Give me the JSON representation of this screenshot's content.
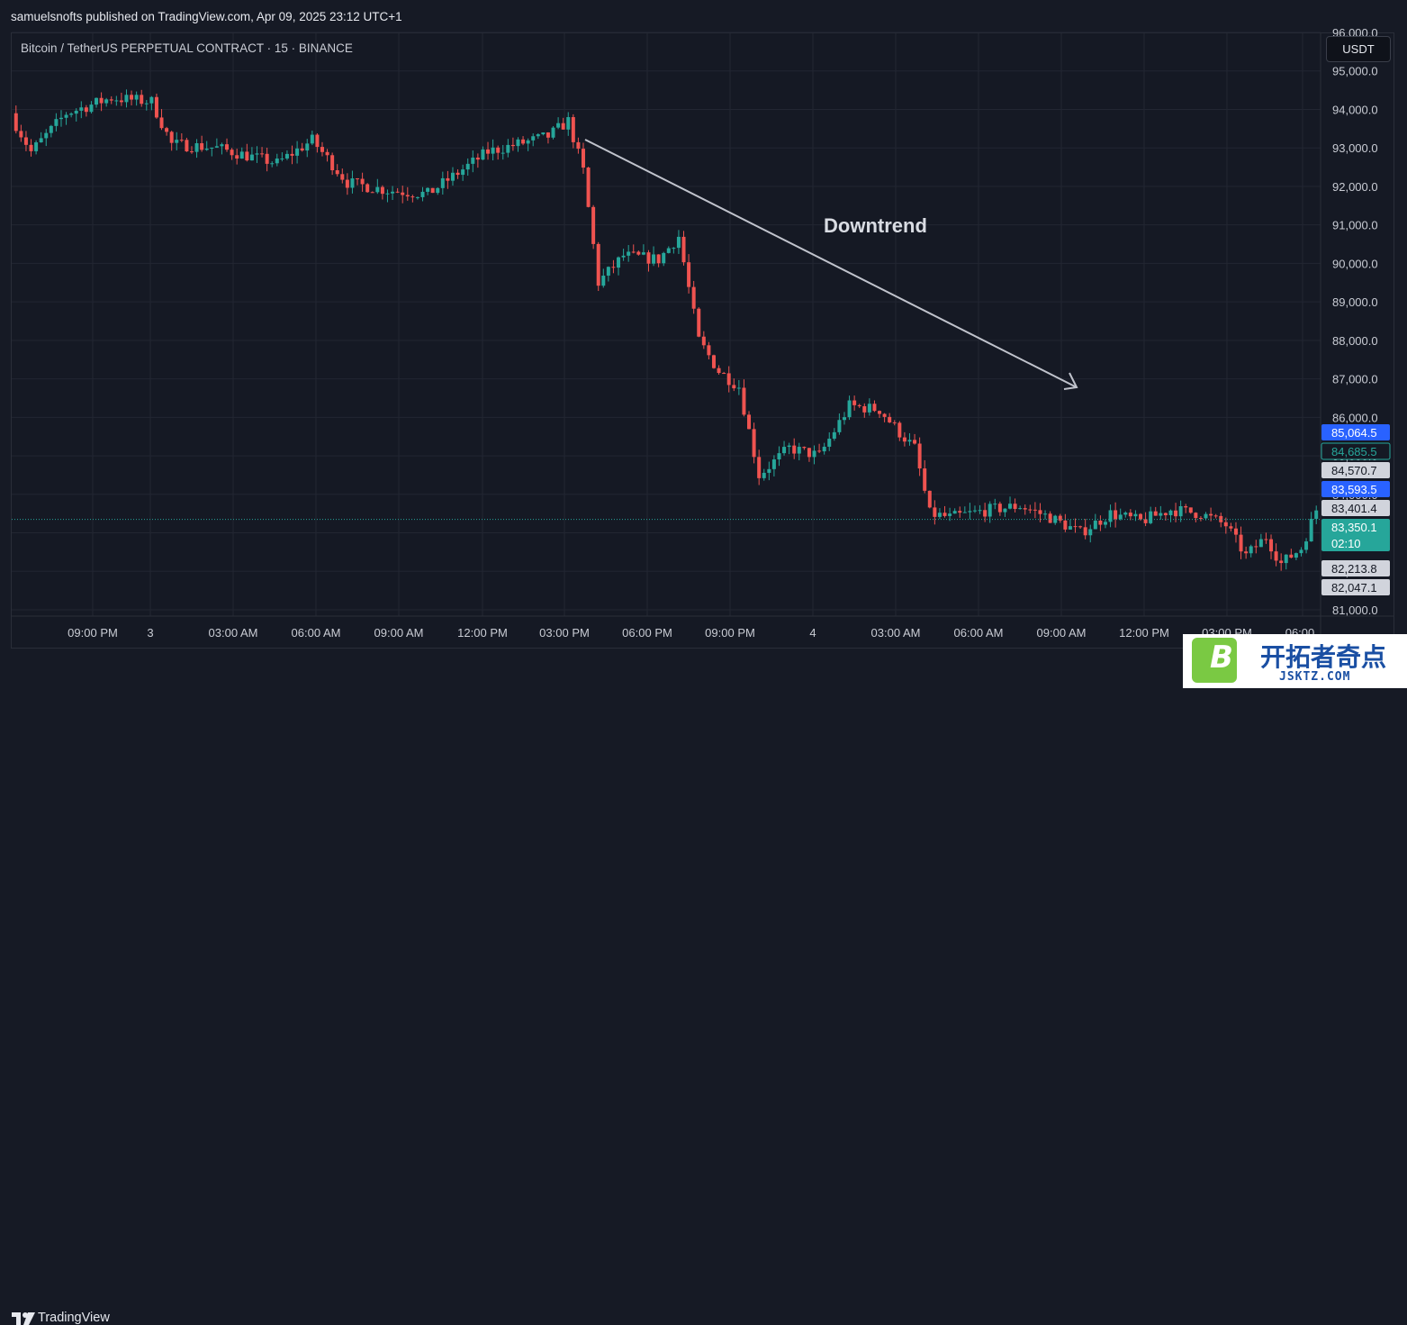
{
  "header": {
    "published_text": "samuelsnofts published on TradingView.com, Apr 09, 2025 23:12 UTC+1"
  },
  "symbol": {
    "title": "Bitcoin / TetherUS PERPETUAL CONTRACT · 15 · BINANCE"
  },
  "currency_button": "USDT",
  "footer": {
    "brand": "TradingView"
  },
  "watermark": {
    "brand_cn": "开拓者奇点",
    "url": "JSKTZ.COM",
    "letter": "B"
  },
  "colors": {
    "up": "#26a69a",
    "down": "#ef5350",
    "background": "#151924",
    "grid": "#222632",
    "arrow": "#c0c3cc"
  },
  "chart_data": {
    "type": "candlestick",
    "title": "Bitcoin / TetherUS PERPETUAL CONTRACT · 15 · BINANCE",
    "ylim": [
      80700,
      97000
    ],
    "y_ticks": [
      81000,
      82000,
      83000,
      84000,
      85000,
      86000,
      87000,
      88000,
      89000,
      90000,
      91000,
      92000,
      93000,
      94000,
      95000,
      96000
    ],
    "y_tick_labels": [
      "81,000.0",
      "82,000.0",
      "83,000.0",
      "84,000.0",
      "85,000.0",
      "86,000.0",
      "87,000.0",
      "88,000.0",
      "89,000.0",
      "90,000.0",
      "91,000.0",
      "92,000.0",
      "93,000.0",
      "94,000.0",
      "95,000.0",
      "96,000.0"
    ],
    "x_tick_labels": [
      "09:00 PM",
      "3",
      "03:00 AM",
      "06:00 AM",
      "09:00 AM",
      "12:00 PM",
      "03:00 PM",
      "06:00 PM",
      "09:00 PM",
      "4",
      "03:00 AM",
      "06:00 AM",
      "09:00 AM",
      "12:00 PM",
      "03:00 PM",
      "06:00"
    ],
    "grid": true,
    "annotation": {
      "text": "Downtrend",
      "arrow_from": [
        "03:00 PM",
        94400
      ],
      "arrow_to": [
        "09:00 AM",
        87300
      ]
    },
    "current_price": 83350.1,
    "price_labels": [
      {
        "text": "85,064.5",
        "value": 85064.5,
        "style": "blue"
      },
      {
        "text": "84,685.5",
        "value": 84685.5,
        "style": "teal-outline"
      },
      {
        "text": "84,570.7",
        "value": 84570.7,
        "style": "gray"
      },
      {
        "text": "83,593.5",
        "value": 83593.5,
        "style": "blue"
      },
      {
        "text": "83,401.4",
        "value": 83401.4,
        "style": "gray"
      },
      {
        "text": "83,350.1",
        "value": 83350.1,
        "style": "teal",
        "countdown": "02:10"
      },
      {
        "text": "82,213.8",
        "value": 82213.8,
        "style": "gray"
      },
      {
        "text": "82,047.1",
        "value": 82047.1,
        "style": "gray"
      }
    ],
    "trend_anchor_closes": [
      [
        0,
        93600
      ],
      [
        3,
        92900
      ],
      [
        10,
        93900
      ],
      [
        19,
        94300
      ],
      [
        27,
        94200
      ],
      [
        31,
        93100
      ],
      [
        40,
        93000
      ],
      [
        52,
        92600
      ],
      [
        59,
        93200
      ],
      [
        66,
        92100
      ],
      [
        74,
        91900
      ],
      [
        82,
        91800
      ],
      [
        94,
        92900
      ],
      [
        106,
        93300
      ],
      [
        110,
        93700
      ],
      [
        113,
        92400
      ],
      [
        116,
        89500
      ],
      [
        121,
        90200
      ],
      [
        128,
        90100
      ],
      [
        132,
        90700
      ],
      [
        136,
        88000
      ],
      [
        140,
        87200
      ],
      [
        144,
        86800
      ],
      [
        148,
        84500
      ],
      [
        154,
        85200
      ],
      [
        160,
        85000
      ],
      [
        166,
        86300
      ],
      [
        172,
        86200
      ],
      [
        176,
        85600
      ],
      [
        179,
        85200
      ],
      [
        182,
        83500
      ],
      [
        186,
        83400
      ],
      [
        194,
        83600
      ],
      [
        200,
        83700
      ],
      [
        206,
        83400
      ],
      [
        212,
        83000
      ],
      [
        218,
        83500
      ],
      [
        224,
        83300
      ],
      [
        230,
        83600
      ],
      [
        236,
        83500
      ],
      [
        241,
        83200
      ],
      [
        245,
        82400
      ],
      [
        249,
        82900
      ],
      [
        252,
        82200
      ],
      [
        256,
        82600
      ],
      [
        259,
        83600
      ]
    ]
  }
}
